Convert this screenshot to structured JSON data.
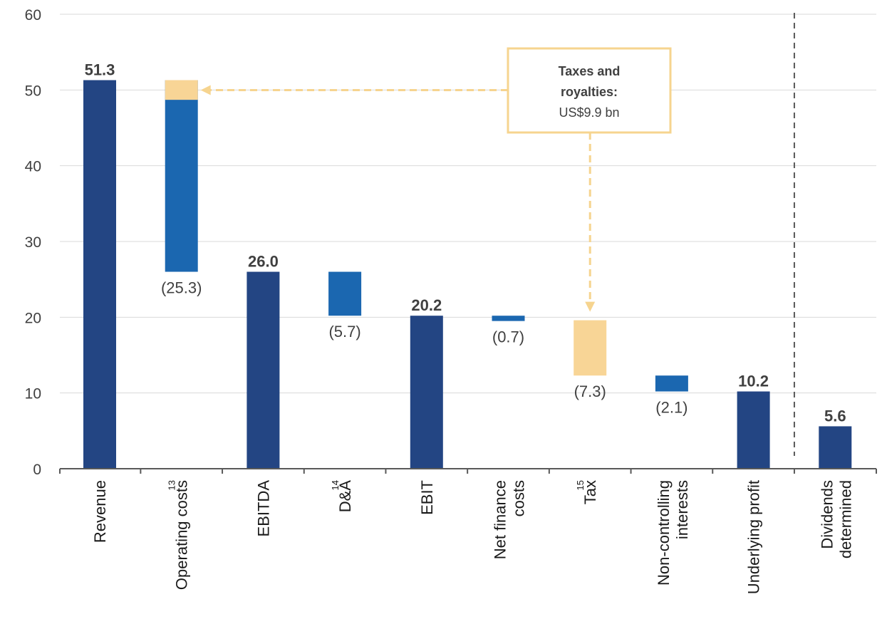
{
  "colors": {
    "total": "#234583",
    "decrease": "#1b67b0",
    "tax": "#f8d596",
    "grid": "#d9d9d9",
    "axis": "#595959",
    "callout_border": "#f6d48f",
    "arrow": "#f6d48f",
    "divider": "#595959"
  },
  "callout": {
    "title_line1": "Taxes and",
    "title_line2": "royalties:",
    "value": "US$9.9 bn"
  },
  "chart_data": {
    "type": "bar",
    "subtype": "waterfall",
    "ylim": [
      0,
      60
    ],
    "yticks": [
      0,
      10,
      20,
      30,
      40,
      50,
      60
    ],
    "grid": true,
    "categories": [
      {
        "line1": "Revenue",
        "line2": "",
        "footnote": ""
      },
      {
        "line1": "Operating costs",
        "line2": "",
        "footnote": "13"
      },
      {
        "line1": "EBITDA",
        "line2": "",
        "footnote": ""
      },
      {
        "line1": "D&A",
        "line2": "",
        "footnote": "14"
      },
      {
        "line1": "EBIT",
        "line2": "",
        "footnote": ""
      },
      {
        "line1": "Net finance",
        "line2": "costs",
        "footnote": ""
      },
      {
        "line1": "Tax",
        "line2": "",
        "footnote": "15"
      },
      {
        "line1": "Non-controlling",
        "line2": "interests",
        "footnote": ""
      },
      {
        "line1": "Underlying profit",
        "line2": "",
        "footnote": ""
      },
      {
        "line1": "Dividends",
        "line2": "determined",
        "footnote": ""
      }
    ],
    "bars": [
      {
        "kind": "total",
        "base": 0,
        "top": 51.3,
        "label": "51.3"
      },
      {
        "kind": "decrease",
        "base": 26.0,
        "top": 51.3,
        "tax_portion": 2.6,
        "label": "(25.3)"
      },
      {
        "kind": "total",
        "base": 0,
        "top": 26.0,
        "label": "26.0"
      },
      {
        "kind": "decrease",
        "base": 20.2,
        "top": 26.0,
        "label": "(5.7)"
      },
      {
        "kind": "total",
        "base": 0,
        "top": 20.2,
        "label": "20.2"
      },
      {
        "kind": "decrease",
        "base": 19.5,
        "top": 20.2,
        "label": "(0.7)"
      },
      {
        "kind": "tax",
        "base": 12.3,
        "top": 19.6,
        "label": "(7.3)"
      },
      {
        "kind": "decrease",
        "base": 10.2,
        "top": 12.3,
        "label": "(2.1)"
      },
      {
        "kind": "total",
        "base": 0,
        "top": 10.2,
        "label": "10.2"
      },
      {
        "kind": "total",
        "base": 0,
        "top": 5.6,
        "label": "5.6"
      }
    ]
  }
}
